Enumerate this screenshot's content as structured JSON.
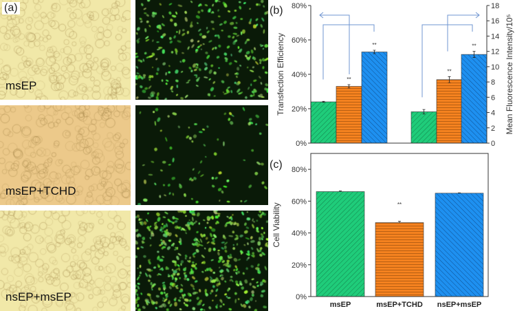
{
  "panel_a": {
    "label": "(a)",
    "rows": [
      {
        "condition": "msEP"
      },
      {
        "condition": "msEP+TCHD"
      },
      {
        "condition": "nsEP+msEP"
      }
    ]
  },
  "chart_data": [
    {
      "panel": "(b)",
      "type": "bar",
      "groups": [
        "Transfection Efficiency",
        "Mean Fluorescence Intensity"
      ],
      "categories": [
        "msEP",
        "msEP+TCHD",
        "nsEP+msEP"
      ],
      "series": [
        {
          "name": "Transfection Efficiency",
          "axis": "left",
          "values": [
            24,
            33,
            53
          ],
          "errors": [
            0.3,
            1,
            1
          ],
          "significance": [
            "",
            "**",
            "**"
          ]
        },
        {
          "name": "Mean Fluorescence Intensity",
          "axis": "right",
          "values": [
            4.1,
            8.3,
            11.6
          ],
          "errors": [
            0.3,
            0.4,
            0.4
          ],
          "significance": [
            "",
            "**",
            "**"
          ]
        }
      ],
      "ylabel": "Transfection Efficiency",
      "y2label": "Mean Fluorescence Intensity/10⁵",
      "ylim": [
        0,
        80
      ],
      "y2lim": [
        0,
        18
      ],
      "yticks": [
        "0%",
        "20%",
        "40%",
        "60%",
        "80%"
      ],
      "y2ticks": [
        "0",
        "2",
        "4",
        "6",
        "8",
        "10",
        "12",
        "14",
        "16",
        "18"
      ],
      "sig_label": "**"
    },
    {
      "panel": "(c)",
      "type": "bar",
      "categories": [
        "msEP",
        "msEP+TCHD",
        "nsEP+msEP"
      ],
      "values": [
        66,
        46.5,
        65
      ],
      "errors": [
        0.4,
        0.8,
        0.2
      ],
      "significance": [
        "",
        "**",
        ""
      ],
      "ylabel": "Cell Viability",
      "ylim": [
        0,
        90
      ],
      "yticks": [
        "0%",
        "20%",
        "40%",
        "60%",
        "80%"
      ]
    }
  ],
  "colors": {
    "green": "#1fcc7a",
    "orange": "#f5821f",
    "blue": "#1e90f0",
    "arrow": "#6f95d0"
  }
}
